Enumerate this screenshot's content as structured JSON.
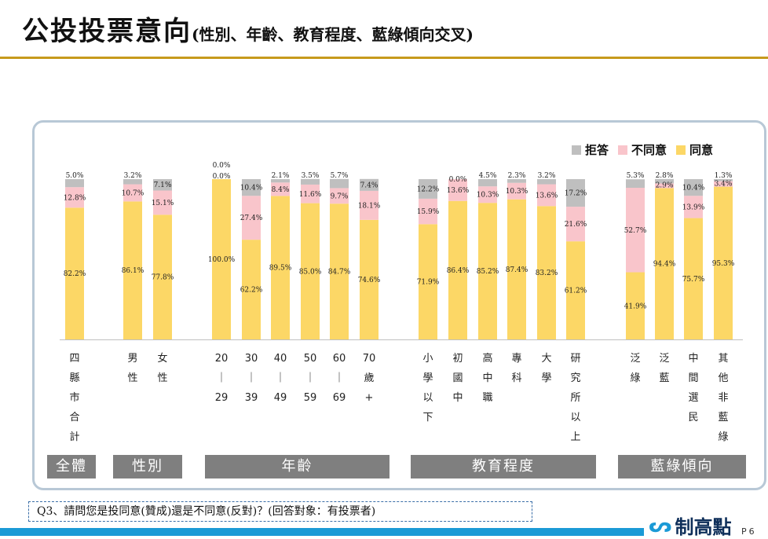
{
  "title": {
    "main": "公投投票意向",
    "sub": "(性別、年齡、教育程度、藍綠傾向交叉)"
  },
  "legend": [
    {
      "label": "拒答",
      "color": "#bfbfbf"
    },
    {
      "label": "不同意",
      "color": "#f9c5cb"
    },
    {
      "label": "同意",
      "color": "#fcd766"
    }
  ],
  "chart_data": {
    "type": "bar",
    "stacked": true,
    "ylim": [
      0,
      100
    ],
    "categories": [
      "四縣市合計",
      "男性",
      "女性",
      "20｜29",
      "30｜39",
      "40｜49",
      "50｜59",
      "60｜69",
      "70歲+",
      "小學以下",
      "初國中",
      "高中職",
      "專科",
      "大學",
      "研究所以上",
      "泛綠",
      "泛藍",
      "中間選民",
      "其他非藍綠"
    ],
    "category_lines": [
      [
        "四",
        "縣",
        "市",
        "合",
        "計"
      ],
      [
        "男",
        "性"
      ],
      [
        "女",
        "性"
      ],
      [
        "20",
        "｜",
        "29"
      ],
      [
        "30",
        "｜",
        "39"
      ],
      [
        "40",
        "｜",
        "49"
      ],
      [
        "50",
        "｜",
        "59"
      ],
      [
        "60",
        "｜",
        "69"
      ],
      [
        "70",
        "歲",
        "+"
      ],
      [
        "小",
        "學",
        "以",
        "下"
      ],
      [
        "初",
        "國",
        "中"
      ],
      [
        "高",
        "中",
        "職"
      ],
      [
        "專",
        "科"
      ],
      [
        "大",
        "學"
      ],
      [
        "研",
        "究",
        "所",
        "以",
        "上"
      ],
      [
        "泛",
        "綠"
      ],
      [
        "泛",
        "藍"
      ],
      [
        "中",
        "間",
        "選",
        "民"
      ],
      [
        "其",
        "他",
        "非",
        "藍",
        "綠"
      ]
    ],
    "series": [
      {
        "name": "同意",
        "color": "#fcd766",
        "values": [
          82.2,
          86.1,
          77.8,
          100.0,
          62.2,
          89.5,
          85.0,
          84.7,
          74.6,
          71.9,
          86.4,
          85.2,
          87.4,
          83.2,
          61.2,
          41.9,
          94.4,
          75.7,
          95.3
        ]
      },
      {
        "name": "不同意",
        "color": "#f9c5cb",
        "values": [
          12.8,
          10.7,
          15.1,
          0.0,
          27.4,
          8.4,
          11.6,
          9.7,
          18.1,
          15.9,
          13.6,
          10.3,
          10.3,
          13.6,
          21.6,
          52.7,
          2.9,
          13.9,
          3.4
        ]
      },
      {
        "name": "拒答",
        "color": "#bfbfbf",
        "values": [
          5.0,
          3.2,
          7.1,
          0.0,
          10.4,
          2.1,
          3.5,
          5.7,
          7.4,
          12.2,
          0.0,
          4.5,
          2.3,
          3.2,
          17.2,
          5.3,
          2.8,
          10.4,
          1.3
        ]
      }
    ],
    "labels": {
      "同意": [
        "82.2%",
        "86.1%",
        "77.8%",
        "100.0%",
        "62.2%",
        "89.5%",
        "85.0%",
        "84.7%",
        "74.6%",
        "71.9%",
        "86.4%",
        "85.2%",
        "87.4%",
        "83.2%",
        "61.2%",
        "41.9%",
        "94.4%",
        "75.7%",
        "95.3%"
      ],
      "不同意": [
        "12.8%",
        "10.7%",
        "15.1%",
        "0.0%",
        "27.4%",
        "8.4%",
        "11.6%",
        "9.7%",
        "18.1%",
        "15.9%",
        "13.6%",
        "10.3%",
        "10.3%",
        "13.6%",
        "21.6%",
        "52.7%",
        "2.9%",
        "13.9%",
        "3.4%"
      ],
      "拒答": [
        "5.0%",
        "3.2%",
        "7.1%",
        "0.0%",
        "10.4%",
        "2.1%",
        "3.5%",
        "5.7%",
        "7.4%",
        "12.2%",
        "0.0%",
        "4.5%",
        "2.3%",
        "3.2%",
        "17.2%",
        "5.3%",
        "2.8%",
        "10.4%",
        "1.3%"
      ]
    },
    "groups": [
      "全體",
      "性別",
      "年齡",
      "教育程度",
      "藍綠傾向"
    ]
  },
  "question": "Q3、請問您是投同意(贊成)還是不同意(反對)？(回答對象：有投票者)",
  "logo": {
    "text": "制高點"
  },
  "page": "P6"
}
